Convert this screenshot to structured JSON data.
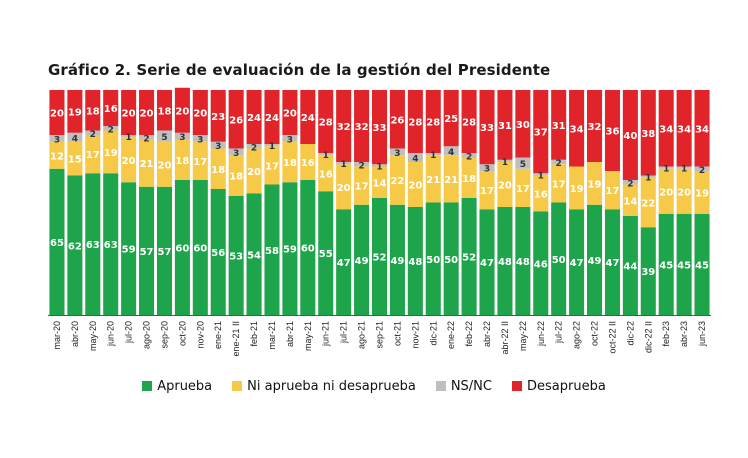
{
  "chart_data": {
    "type": "bar",
    "stacked": true,
    "title": "Gráfico 2. Serie de evaluación de la gestión del Presidente",
    "ylim": [
      0,
      100
    ],
    "categories": [
      "mar-20",
      "abr-20",
      "may-20",
      "jun-20",
      "jul-20",
      "ago-20",
      "sep-20",
      "oct-20",
      "nov-20",
      "ene-21",
      "ene-21 II",
      "feb-21",
      "mar-21",
      "abr-21",
      "may-21",
      "jun-21",
      "jul-21",
      "ago-21",
      "sep-21",
      "oct-21",
      "nov-21",
      "dic-21",
      "ene-22",
      "feb-22",
      "abr-22",
      "abr-22 II",
      "may-22",
      "jun-22",
      "jul-22",
      "ago-22",
      "oct-22",
      "oct-22 II",
      "dic-22",
      "dic-22 II",
      "feb-23",
      "abr-23",
      "jun-23"
    ],
    "series": [
      {
        "name": "Aprueba",
        "color": "#1ea44b",
        "values": [
          65,
          62,
          63,
          63,
          59,
          57,
          57,
          60,
          60,
          56,
          53,
          54,
          58,
          59,
          60,
          55,
          47,
          49,
          52,
          49,
          48,
          50,
          50,
          52,
          47,
          48,
          48,
          46,
          50,
          47,
          49,
          47,
          44,
          39,
          45,
          45,
          45
        ]
      },
      {
        "name": "Ni aprueba ni desaprueba",
        "color": "#f7c948",
        "values": [
          12,
          15,
          17,
          19,
          20,
          21,
          20,
          18,
          17,
          18,
          18,
          20,
          17,
          18,
          16,
          16,
          20,
          17,
          14,
          22,
          20,
          21,
          21,
          18,
          17,
          20,
          17,
          16,
          17,
          19,
          19,
          17,
          14,
          22,
          20,
          20,
          19
        ]
      },
      {
        "name": "NS/NC",
        "color": "#bfbfbf",
        "values": [
          3,
          4,
          2,
          2,
          1,
          2,
          5,
          3,
          3,
          3,
          3,
          2,
          1,
          3,
          0,
          1,
          1,
          2,
          1,
          3,
          4,
          1,
          4,
          2,
          3,
          1,
          5,
          1,
          2,
          0,
          0,
          0,
          2,
          1,
          1,
          1,
          2
        ]
      },
      {
        "name": "Desaprueba",
        "color": "#e0242a",
        "values": [
          20,
          19,
          18,
          16,
          20,
          20,
          18,
          20,
          20,
          23,
          26,
          24,
          24,
          20,
          24,
          28,
          32,
          32,
          33,
          26,
          28,
          28,
          25,
          28,
          33,
          31,
          30,
          37,
          31,
          34,
          32,
          36,
          40,
          38,
          34,
          34,
          34
        ]
      }
    ],
    "legend_position": "bottom"
  }
}
